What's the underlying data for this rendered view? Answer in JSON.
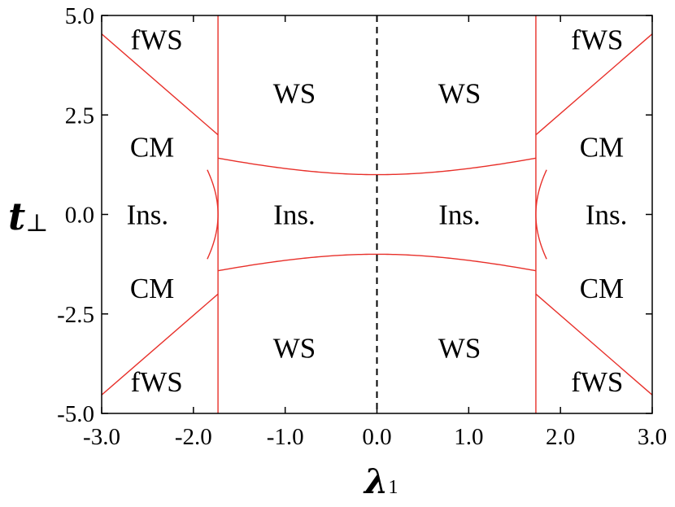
{
  "chart_data": {
    "type": "line",
    "xlabel": "λ",
    "xlabel_sub": "1",
    "ylabel": "t",
    "ylabel_sub": "⊥",
    "xlim": [
      -3.0,
      3.0
    ],
    "ylim": [
      -5.0,
      5.0
    ],
    "xticks": [
      "-3.0",
      "-2.0",
      "-1.0",
      "0.0",
      "1.0",
      "2.0",
      "3.0"
    ],
    "yticks": [
      "5.0",
      "2.5",
      "0.0",
      "-2.5",
      "-5.0"
    ],
    "xtick_values": [
      -3,
      -2,
      -1,
      0,
      1,
      2,
      3
    ],
    "ytick_values": [
      5,
      2.5,
      0,
      -2.5,
      -5
    ],
    "line_color": "#e8302a",
    "dashed_line_color": "#000000",
    "boundaries": {
      "vertical_lines_x": [
        -1.732,
        1.732
      ],
      "dashed_line_x": 0.0,
      "central_curves": "t = ±sqrt(1 + λ²/3) for |λ| < 1.732",
      "outer_fWS_curves": "t = ±(2 + 2(|λ| − 1.732)) for |λ| > 1.732",
      "outer_Ins_curves": "λ² − t²/3 = 3 for |λ| > 1.732"
    },
    "regions": [
      {
        "text": "fWS",
        "x": -2.4,
        "y": 4.4
      },
      {
        "text": "fWS",
        "x": 2.4,
        "y": 4.4
      },
      {
        "text": "WS",
        "x": -0.9,
        "y": 3.05
      },
      {
        "text": "WS",
        "x": 0.9,
        "y": 3.05
      },
      {
        "text": "CM",
        "x": -2.45,
        "y": 1.7
      },
      {
        "text": "CM",
        "x": 2.45,
        "y": 1.7
      },
      {
        "text": "Ins.",
        "x": -2.5,
        "y": 0.0
      },
      {
        "text": "Ins.",
        "x": -0.9,
        "y": 0.0
      },
      {
        "text": "Ins.",
        "x": 0.9,
        "y": 0.0
      },
      {
        "text": "Ins.",
        "x": 2.5,
        "y": 0.0
      },
      {
        "text": "CM",
        "x": -2.45,
        "y": -1.85
      },
      {
        "text": "CM",
        "x": 2.45,
        "y": -1.85
      },
      {
        "text": "WS",
        "x": -0.9,
        "y": -3.35
      },
      {
        "text": "WS",
        "x": 0.9,
        "y": -3.35
      },
      {
        "text": "fWS",
        "x": -2.4,
        "y": -4.2
      },
      {
        "text": "fWS",
        "x": 2.4,
        "y": -4.2
      }
    ]
  }
}
